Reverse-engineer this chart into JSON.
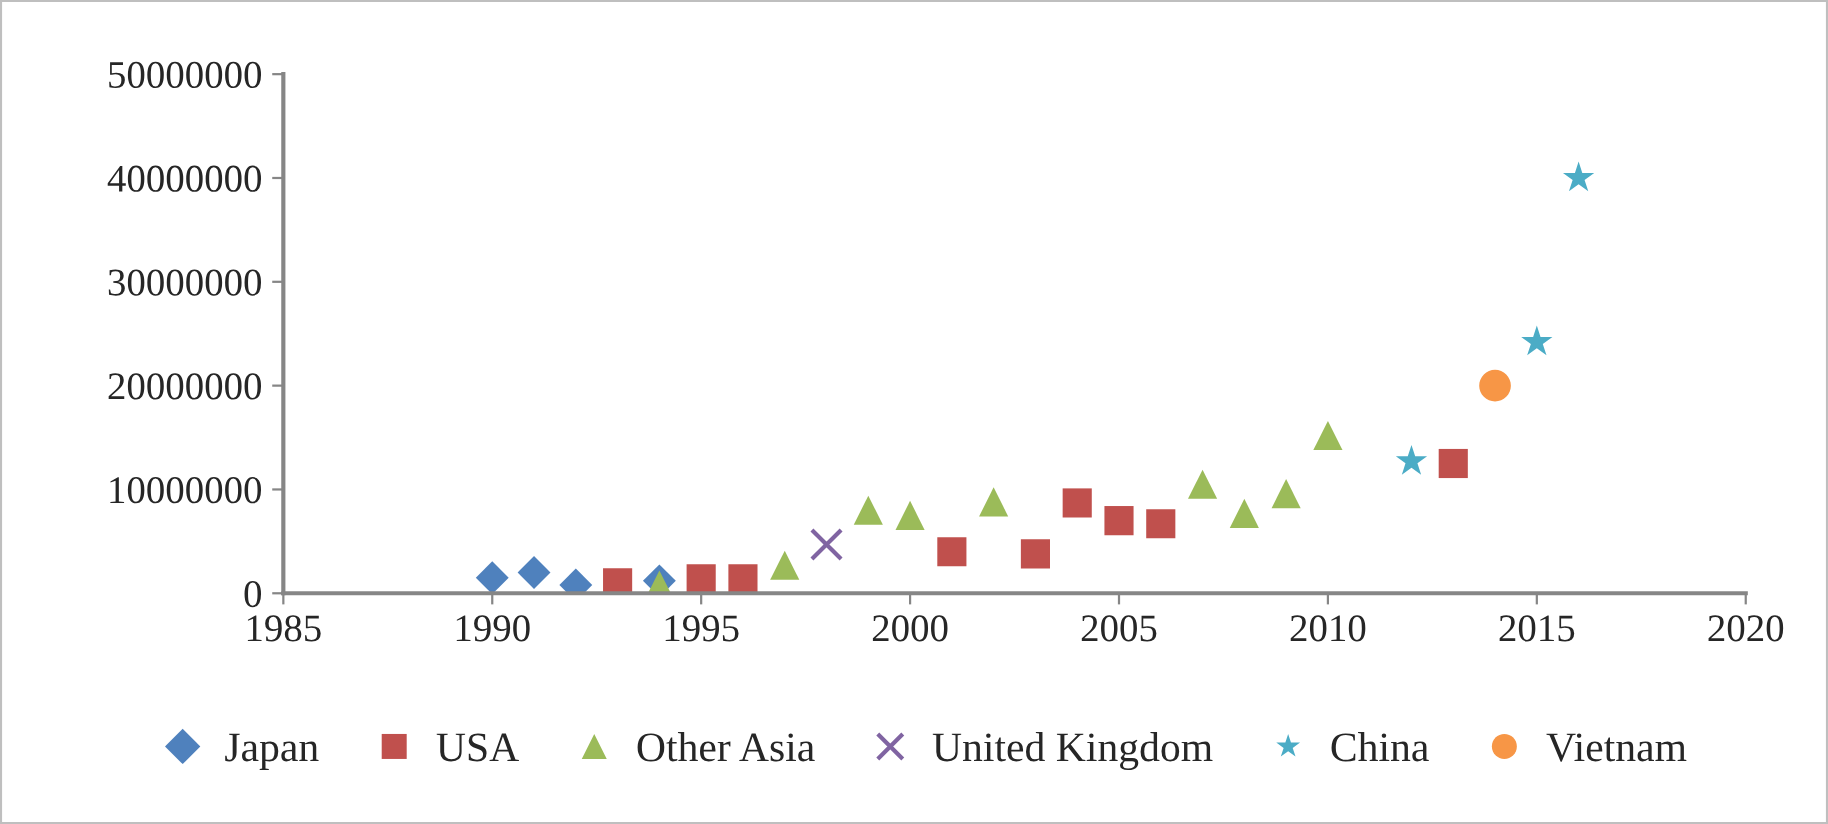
{
  "chart_data": {
    "type": "scatter",
    "xlim": [
      1985,
      2020
    ],
    "xticks": [
      1985,
      1990,
      1995,
      2000,
      2005,
      2010,
      2015,
      2020
    ],
    "ylim": [
      0,
      50000000
    ],
    "yticks": [
      0,
      10000000,
      20000000,
      30000000,
      40000000,
      50000000
    ],
    "grid": false,
    "legend": "bottom",
    "series": [
      {
        "name": "Japan",
        "color": "#4f81bd",
        "marker": "diamond",
        "x": [
          1990,
          1991,
          1992,
          1994
        ],
        "values": [
          1500000,
          2000000,
          800000,
          1200000
        ]
      },
      {
        "name": "USA",
        "color": "#c0504d",
        "marker": "square",
        "x": [
          1993,
          1995,
          1996,
          2001,
          2003,
          2004,
          2005,
          2006,
          2013
        ],
        "values": [
          1000000,
          1400000,
          1400000,
          4000000,
          3800000,
          8700000,
          7000000,
          6700000,
          12500000
        ]
      },
      {
        "name": "Other Asia",
        "color": "#9bbb59",
        "marker": "triangle",
        "x": [
          1994,
          1997,
          1999,
          2000,
          2002,
          2007,
          2008,
          2009,
          2010
        ],
        "values": [
          800000,
          2700000,
          8000000,
          7500000,
          8800000,
          10500000,
          7700000,
          9600000,
          15200000
        ]
      },
      {
        "name": "United Kingdom",
        "color": "#8064a2",
        "marker": "cross",
        "x": [
          1998
        ],
        "values": [
          4700000
        ]
      },
      {
        "name": "China",
        "color": "#4bacc6",
        "marker": "star",
        "x": [
          2012,
          2015,
          2016
        ],
        "values": [
          12700000,
          24200000,
          40000000
        ]
      },
      {
        "name": "Vietnam",
        "color": "#f79646",
        "marker": "circle",
        "x": [
          2014
        ],
        "values": [
          20000000
        ]
      }
    ]
  }
}
